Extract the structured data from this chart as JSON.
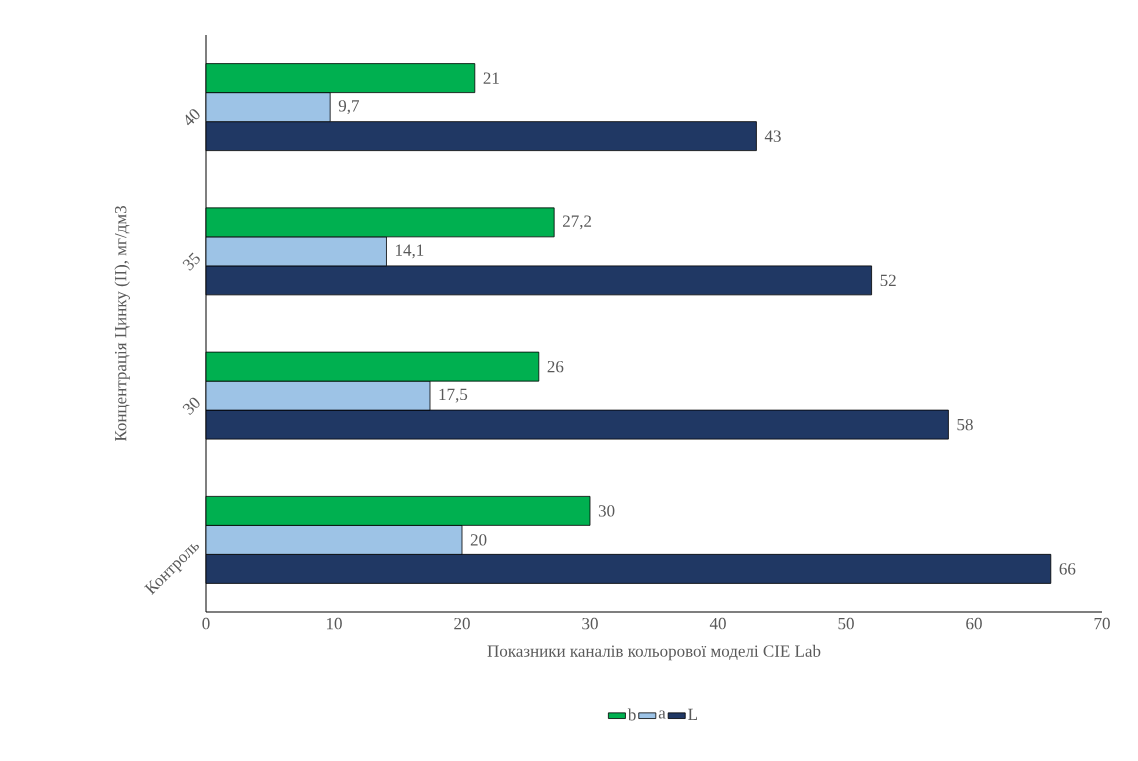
{
  "chart_data": {
    "type": "bar",
    "orientation": "horizontal",
    "xlabel": "Показники каналів кольорової моделі CIE Lab",
    "ylabel": "Концентрація Цинку (ІІ), мг/дм3",
    "categories": [
      "40",
      "35",
      "30",
      "Контроль"
    ],
    "series": [
      {
        "name": "b",
        "color": "#00b050",
        "values": [
          21,
          27.2,
          26,
          30
        ],
        "value_labels": [
          "21",
          "27,2",
          "26",
          "30"
        ]
      },
      {
        "name": "a",
        "color": "#9dc3e6",
        "values": [
          9.7,
          14.1,
          17.5,
          20
        ],
        "value_labels": [
          "9,7",
          "14,1",
          "17,5",
          "20"
        ]
      },
      {
        "name": "L",
        "color": "#203864",
        "values": [
          43,
          52,
          58,
          66
        ],
        "value_labels": [
          "43",
          "52",
          "58",
          "66"
        ]
      }
    ],
    "xlim": [
      0,
      70
    ],
    "xticks": [
      0,
      10,
      20,
      30,
      40,
      50,
      60,
      70
    ],
    "grid": false,
    "legend": "bottom"
  }
}
